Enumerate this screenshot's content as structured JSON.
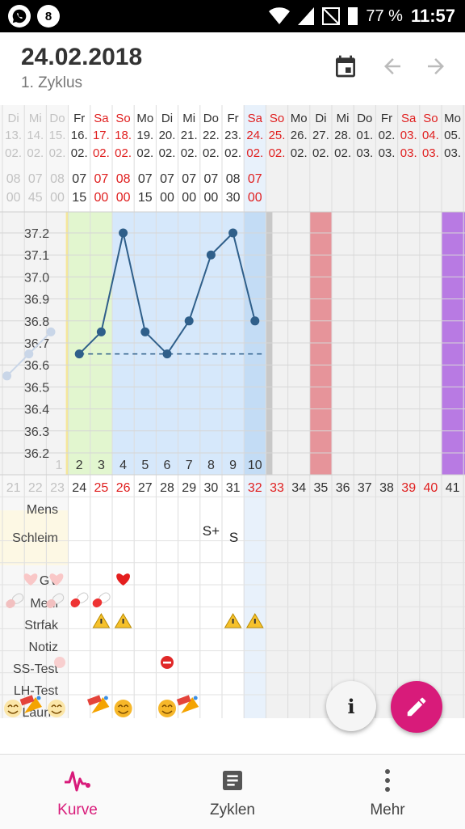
{
  "statusbar": {
    "battery": "77 %",
    "time": "11:57",
    "app_icon_2": "8"
  },
  "header": {
    "date": "24.02.2018",
    "cycle": "1. Zyklus"
  },
  "chart_data": {
    "type": "line",
    "title": "",
    "ylim": [
      36.15,
      37.25
    ],
    "yticks": [
      "37.2",
      "37.1",
      "37.0",
      "36.9",
      "36.8",
      "36.7",
      "36.6",
      "36.5",
      "36.4",
      "36.3",
      "36.2"
    ],
    "cycle_days": [
      "1",
      "2",
      "3",
      "4",
      "5",
      "6",
      "7",
      "8",
      "9",
      "10"
    ],
    "columns": [
      {
        "wd": "Di",
        "day": "13.",
        "mon": "02.",
        "red": false,
        "faded": true,
        "t1": "08",
        "t2": "00",
        "cnum": "21"
      },
      {
        "wd": "Mi",
        "day": "14.",
        "mon": "02.",
        "red": false,
        "faded": true,
        "t1": "07",
        "t2": "45",
        "cnum": "22"
      },
      {
        "wd": "Do",
        "day": "15.",
        "mon": "02.",
        "red": false,
        "faded": true,
        "t1": "08",
        "t2": "00",
        "cnum": "23"
      },
      {
        "wd": "Fr",
        "day": "16.",
        "mon": "02.",
        "red": false,
        "faded": false,
        "t1": "07",
        "t2": "15",
        "cnum": "24"
      },
      {
        "wd": "Sa",
        "day": "17.",
        "mon": "02.",
        "red": true,
        "faded": false,
        "t1": "07",
        "t2": "00",
        "cnum": "25"
      },
      {
        "wd": "So",
        "day": "18.",
        "mon": "02.",
        "red": true,
        "faded": false,
        "t1": "08",
        "t2": "00",
        "cnum": "26"
      },
      {
        "wd": "Mo",
        "day": "19.",
        "mon": "02.",
        "red": false,
        "faded": false,
        "t1": "07",
        "t2": "15",
        "cnum": "27"
      },
      {
        "wd": "Di",
        "day": "20.",
        "mon": "02.",
        "red": false,
        "faded": false,
        "t1": "07",
        "t2": "00",
        "cnum": "28"
      },
      {
        "wd": "Mi",
        "day": "21.",
        "mon": "02.",
        "red": false,
        "faded": false,
        "t1": "07",
        "t2": "00",
        "cnum": "29"
      },
      {
        "wd": "Do",
        "day": "22.",
        "mon": "02.",
        "red": false,
        "faded": false,
        "t1": "07",
        "t2": "00",
        "cnum": "30"
      },
      {
        "wd": "Fr",
        "day": "23.",
        "mon": "02.",
        "red": false,
        "faded": false,
        "t1": "08",
        "t2": "30",
        "cnum": "31"
      },
      {
        "wd": "Sa",
        "day": "24.",
        "mon": "02.",
        "red": true,
        "faded": false,
        "t1": "07",
        "t2": "00",
        "cnum": "32"
      },
      {
        "wd": "So",
        "day": "25.",
        "mon": "02.",
        "red": true,
        "faded": false,
        "t1": "",
        "t2": "",
        "cnum": "33"
      },
      {
        "wd": "Mo",
        "day": "26.",
        "mon": "02.",
        "red": false,
        "faded": false,
        "t1": "",
        "t2": "",
        "cnum": "34"
      },
      {
        "wd": "Di",
        "day": "27.",
        "mon": "02.",
        "red": false,
        "faded": false,
        "t1": "",
        "t2": "",
        "cnum": "35"
      },
      {
        "wd": "Mi",
        "day": "28.",
        "mon": "02.",
        "red": false,
        "faded": false,
        "t1": "",
        "t2": "",
        "cnum": "36"
      },
      {
        "wd": "Do",
        "day": "01.",
        "mon": "03.",
        "red": false,
        "faded": false,
        "t1": "",
        "t2": "",
        "cnum": "37"
      },
      {
        "wd": "Fr",
        "day": "02.",
        "mon": "03.",
        "red": false,
        "faded": false,
        "t1": "",
        "t2": "",
        "cnum": "38"
      },
      {
        "wd": "Sa",
        "day": "03.",
        "mon": "03.",
        "red": true,
        "faded": false,
        "t1": "",
        "t2": "",
        "cnum": "39"
      },
      {
        "wd": "So",
        "day": "04.",
        "mon": "03.",
        "red": true,
        "faded": false,
        "t1": "",
        "t2": "",
        "cnum": "40"
      },
      {
        "wd": "Mo",
        "day": "05.",
        "mon": "03.",
        "red": false,
        "faded": false,
        "t1": "",
        "t2": "",
        "cnum": "41"
      }
    ],
    "series": [
      {
        "values": [
          36.65,
          36.75,
          37.2,
          36.75,
          36.65,
          36.8,
          37.1,
          37.2,
          36.8
        ],
        "start_col": 3
      },
      {
        "values": [
          36.55,
          36.65,
          36.75
        ],
        "start_col": 0,
        "faded": true
      }
    ],
    "coverline": 36.65,
    "rows": [
      "Mens",
      "Schleim",
      "GV",
      "Medi",
      "Strfak",
      "Notiz",
      "SS-Test",
      "LH-Test",
      "Laune"
    ],
    "schleim_marks": [
      {
        "col": 9,
        "text": "S+"
      },
      {
        "col": 10,
        "text": "S"
      }
    ],
    "row_icons": {
      "GV": [
        "heart-icon"
      ],
      "Medi": [
        "pill-icon"
      ],
      "Strfak": [
        "warning-icon"
      ],
      "SS-Test": [
        "minus-circle-icon"
      ],
      "Laune": [
        "smiley-icon",
        "party-hat-icon"
      ]
    },
    "colors": {
      "green": "#e2f6cf",
      "blue": "#d6e8fb",
      "blue_today": "#c3dcf5",
      "grey": "#c8c8c8",
      "red": "#e6949a",
      "purple": "#b87ae3",
      "line": "#2f5f8a",
      "text_red": "#e02020"
    }
  },
  "fab": {
    "info_label": "i"
  },
  "nav": [
    {
      "label": "Kurve",
      "icon": "chart-curve-icon",
      "active": true
    },
    {
      "label": "Zyklen",
      "icon": "document-icon",
      "active": false
    },
    {
      "label": "Mehr",
      "icon": "more-vertical-icon",
      "active": false
    }
  ]
}
